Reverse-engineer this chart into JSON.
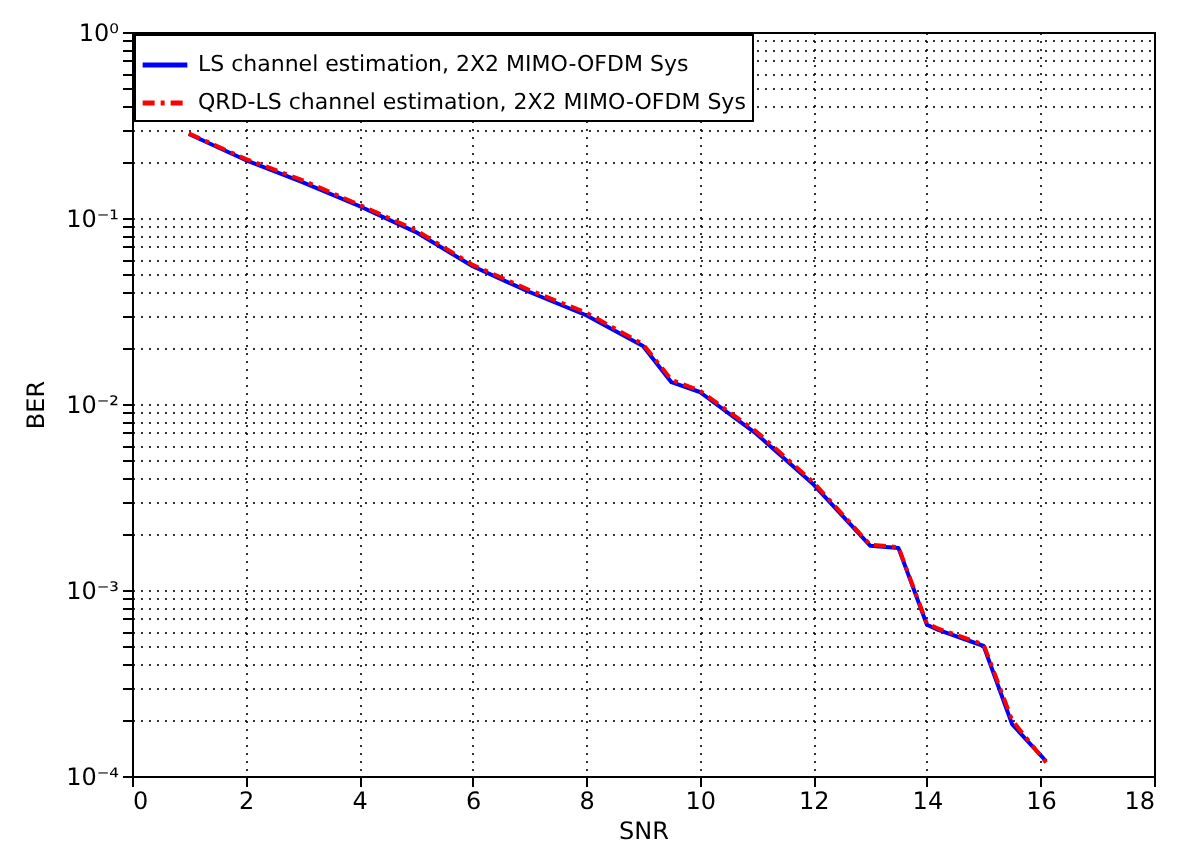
{
  "chart_data": {
    "type": "line",
    "xlabel": "SNR",
    "ylabel": "BER",
    "log": "y",
    "grid": true,
    "legend": "top left",
    "x": [
      1,
      2,
      3,
      4,
      5,
      6,
      7,
      8,
      9,
      9.5,
      10,
      11,
      12,
      13,
      13.5,
      14,
      14.2,
      15,
      15.5,
      16.1
    ],
    "series": [
      {
        "name": "LS channel estimation, 2X2 MIMO-OFDM Sys",
        "color": "#0000ff",
        "line_style": "solid",
        "values": [
          0.283,
          0.205,
          0.156,
          0.116,
          0.084,
          0.055,
          0.04,
          0.03,
          0.0205,
          0.0131,
          0.0116,
          0.0069,
          0.0037,
          0.00173,
          0.00168,
          0.00065,
          0.00061,
          0.0005,
          0.00019,
          0.00012
        ]
      },
      {
        "name": "QRD-LS channel estimation, 2X2 MIMO-OFDM Sys",
        "color": "#ff0000",
        "line_style": "dashed",
        "values": [
          0.285,
          0.208,
          0.16,
          0.118,
          0.086,
          0.056,
          0.041,
          0.031,
          0.021,
          0.0135,
          0.0118,
          0.0071,
          0.0038,
          0.00175,
          0.0017,
          0.00066,
          0.00062,
          0.00051,
          0.0002,
          0.000118
        ]
      }
    ],
    "xlim": [
      0,
      18
    ],
    "xticks": [
      0,
      2,
      4,
      6,
      8,
      10,
      12,
      14,
      16,
      18
    ],
    "ylim": [
      0.0001,
      1
    ],
    "yticks": [
      {
        "value": 0.0001,
        "label": "10⁻⁴"
      },
      {
        "value": 0.0002,
        "label": null
      },
      {
        "value": 0.0003,
        "label": null
      },
      {
        "value": 0.0004,
        "label": null
      },
      {
        "value": 0.0005,
        "label": null
      },
      {
        "value": 0.0006,
        "label": null
      },
      {
        "value": 0.0007,
        "label": null
      },
      {
        "value": 0.0008,
        "label": null
      },
      {
        "value": 0.0009,
        "label": null
      },
      {
        "value": 0.001,
        "label": "10⁻³"
      },
      {
        "value": 0.002,
        "label": null
      },
      {
        "value": 0.003,
        "label": null
      },
      {
        "value": 0.004,
        "label": null
      },
      {
        "value": 0.005,
        "label": null
      },
      {
        "value": 0.006,
        "label": null
      },
      {
        "value": 0.007,
        "label": null
      },
      {
        "value": 0.008,
        "label": null
      },
      {
        "value": 0.009,
        "label": null
      },
      {
        "value": 0.01,
        "label": "10⁻²"
      },
      {
        "value": 0.02,
        "label": null
      },
      {
        "value": 0.03,
        "label": null
      },
      {
        "value": 0.04,
        "label": null
      },
      {
        "value": 0.05,
        "label": null
      },
      {
        "value": 0.06,
        "label": null
      },
      {
        "value": 0.07,
        "label": null
      },
      {
        "value": 0.08,
        "label": null
      },
      {
        "value": 0.09,
        "label": null
      },
      {
        "value": 0.1,
        "label": "10⁻¹"
      },
      {
        "value": 0.2,
        "label": null
      },
      {
        "value": 0.3,
        "label": null
      },
      {
        "value": 0.4,
        "label": null
      },
      {
        "value": 0.5,
        "label": null
      },
      {
        "value": 0.6,
        "label": null
      },
      {
        "value": 0.7,
        "label": null
      },
      {
        "value": 0.8,
        "label": null
      },
      {
        "value": 0.9,
        "label": null
      },
      {
        "value": 1,
        "label": "10⁰"
      }
    ]
  }
}
